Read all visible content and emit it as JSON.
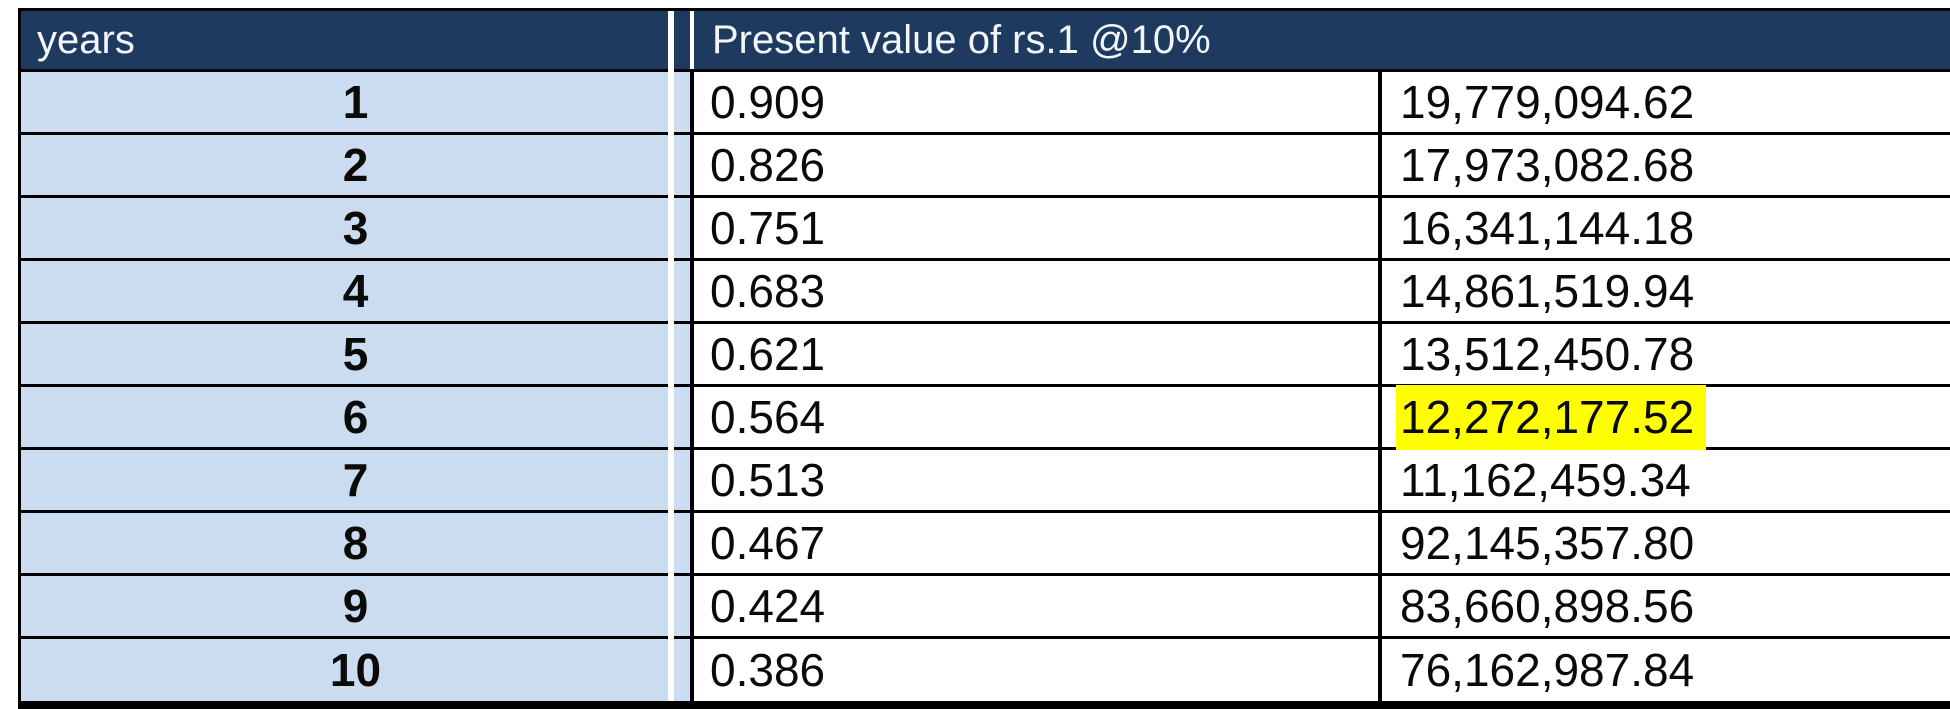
{
  "table": {
    "columns": {
      "years_header": "years",
      "value_header": "Present value of rs.1 @10%"
    },
    "rows": [
      {
        "year": "1",
        "factor": "0.909",
        "amount": "19,779,094.62",
        "highlight": false
      },
      {
        "year": "2",
        "factor": "0.826",
        "amount": "17,973,082.68",
        "highlight": false
      },
      {
        "year": "3",
        "factor": "0.751",
        "amount": "16,341,144.18",
        "highlight": false
      },
      {
        "year": "4",
        "factor": "0.683",
        "amount": "14,861,519.94",
        "highlight": false
      },
      {
        "year": "5",
        "factor": "0.621",
        "amount": "13,512,450.78",
        "highlight": false
      },
      {
        "year": "6",
        "factor": "0.564",
        "amount": "12,272,177.52",
        "highlight": true
      },
      {
        "year": "7",
        "factor": "0.513",
        "amount": "11,162,459.34",
        "highlight": false
      },
      {
        "year": "8",
        "factor": "0.467",
        "amount": "92,145,357.80",
        "highlight": false
      },
      {
        "year": "9",
        "factor": "0.424",
        "amount": "83,660,898.56",
        "highlight": false
      },
      {
        "year": "10",
        "factor": "0.386",
        "amount": "76,162,987.84",
        "highlight": false
      }
    ],
    "colors": {
      "header_bg": "#1e3a5e",
      "header_text": "#f2f6fa",
      "years_bg": "#ccdcf0",
      "body_text": "#0a0a0a",
      "border": "#000000",
      "highlight_bg": "#ffff00"
    }
  }
}
